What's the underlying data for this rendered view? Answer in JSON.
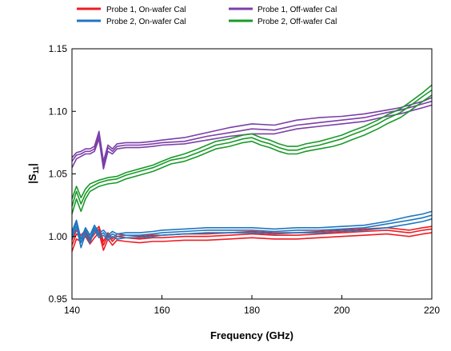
{
  "chart_data": {
    "type": "line",
    "title": "",
    "xlabel": "Frequency (GHz)",
    "ylabel": "|S",
    "ylabel_subscript": "11",
    "ylabel_close": "|",
    "xlim": [
      140,
      220
    ],
    "ylim": [
      0.95,
      1.15
    ],
    "x_ticks": [
      140,
      160,
      180,
      200,
      220
    ],
    "x_tick_labels": [
      "140",
      "160",
      "180",
      "200",
      "220"
    ],
    "y_ticks": [
      0.95,
      1.0,
      1.05,
      1.1,
      1.15
    ],
    "y_tick_labels": [
      "0.95",
      "1.00",
      "1.05",
      "1.10",
      "1.15"
    ],
    "grid": false,
    "legend_position": "top",
    "series": [
      {
        "name": "Probe 1, On-wafer Cal",
        "color": "#ee1c24",
        "curves": [
          {
            "x": [
              140,
              141,
              142,
              143,
              144,
              145,
              146,
              147,
              148,
              149,
              150,
              152,
              155,
              158,
              160,
              165,
              170,
              175,
              180,
              185,
              190,
              195,
              200,
              205,
              210,
              215,
              218,
              220
            ],
            "y": [
              0.988,
              0.998,
              0.996,
              1.0,
              0.994,
              0.999,
              1.003,
              0.989,
              0.998,
              0.993,
              0.997,
              0.996,
              0.995,
              0.996,
              0.996,
              0.997,
              0.997,
              0.998,
              0.999,
              0.998,
              0.998,
              0.999,
              1.0,
              1.001,
              1.002,
              1.0,
              1.002,
              1.003
            ]
          },
          {
            "x": [
              140,
              141,
              142,
              143,
              144,
              145,
              146,
              147,
              148,
              149,
              150,
              152,
              155,
              158,
              160,
              165,
              170,
              175,
              180,
              185,
              190,
              195,
              200,
              205,
              210,
              215,
              218,
              220
            ],
            "y": [
              0.993,
              1.002,
              0.999,
              1.003,
              0.997,
              1.002,
              1.006,
              0.993,
              1.001,
              0.996,
              1.0,
              0.999,
              0.998,
              0.999,
              0.999,
              1.0,
              1.0,
              1.001,
              1.002,
              1.001,
              1.001,
              1.002,
              1.003,
              1.004,
              1.005,
              1.003,
              1.005,
              1.006
            ]
          },
          {
            "x": [
              140,
              141,
              142,
              143,
              144,
              145,
              146,
              147,
              148,
              149,
              150,
              152,
              155,
              158,
              160,
              165,
              170,
              175,
              180,
              185,
              190,
              195,
              200,
              205,
              210,
              215,
              218,
              220
            ],
            "y": [
              0.997,
              1.005,
              1.001,
              1.005,
              0.999,
              1.004,
              1.008,
              0.996,
              1.003,
              0.998,
              1.002,
              1.001,
              1.0,
              1.001,
              1.001,
              1.002,
              1.002,
              1.003,
              1.004,
              1.003,
              1.003,
              1.004,
              1.005,
              1.006,
              1.007,
              1.005,
              1.007,
              1.008
            ]
          }
        ]
      },
      {
        "name": "Probe 2, On-wafer Cal",
        "color": "#1f77c0",
        "curves": [
          {
            "x": [
              140,
              141,
              142,
              143,
              144,
              145,
              146,
              147,
              148,
              149,
              150,
              152,
              155,
              158,
              160,
              165,
              170,
              175,
              180,
              185,
              190,
              195,
              200,
              205,
              210,
              215,
              218,
              220
            ],
            "y": [
              0.998,
              1.008,
              0.991,
              1.002,
              0.995,
              1.005,
              0.999,
              1.001,
              0.997,
              1.0,
              0.998,
              0.999,
              0.999,
              1.0,
              1.001,
              1.002,
              1.003,
              1.003,
              1.003,
              1.002,
              1.003,
              1.003,
              1.004,
              1.005,
              1.007,
              1.01,
              1.012,
              1.014
            ]
          },
          {
            "x": [
              140,
              141,
              142,
              143,
              144,
              145,
              146,
              147,
              148,
              149,
              150,
              152,
              155,
              158,
              160,
              165,
              170,
              175,
              180,
              185,
              190,
              195,
              200,
              205,
              210,
              215,
              218,
              220
            ],
            "y": [
              1.001,
              1.011,
              0.995,
              1.005,
              0.998,
              1.007,
              1.001,
              1.003,
              0.999,
              1.002,
              1.0,
              1.001,
              1.001,
              1.002,
              1.003,
              1.004,
              1.005,
              1.005,
              1.005,
              1.004,
              1.005,
              1.005,
              1.006,
              1.007,
              1.01,
              1.013,
              1.015,
              1.017
            ]
          },
          {
            "x": [
              140,
              141,
              142,
              143,
              144,
              145,
              146,
              147,
              148,
              149,
              150,
              152,
              155,
              158,
              160,
              165,
              170,
              175,
              180,
              185,
              190,
              195,
              200,
              205,
              210,
              215,
              218,
              220
            ],
            "y": [
              1.004,
              1.013,
              0.998,
              1.007,
              1.001,
              1.009,
              1.003,
              1.005,
              1.001,
              1.004,
              1.002,
              1.003,
              1.003,
              1.004,
              1.005,
              1.006,
              1.007,
              1.007,
              1.007,
              1.006,
              1.007,
              1.007,
              1.008,
              1.009,
              1.012,
              1.016,
              1.018,
              1.02
            ]
          }
        ]
      },
      {
        "name": "Probe 1, Off-wafer Cal",
        "color": "#7b3fa8",
        "curves": [
          {
            "x": [
              140,
              141,
              142,
              143,
              144,
              145,
              146,
              147,
              148,
              149,
              150,
              152,
              155,
              158,
              160,
              165,
              170,
              175,
              180,
              185,
              190,
              195,
              200,
              205,
              210,
              213,
              215,
              218,
              220
            ],
            "y": [
              1.055,
              1.062,
              1.064,
              1.066,
              1.066,
              1.068,
              1.078,
              1.054,
              1.068,
              1.066,
              1.07,
              1.071,
              1.071,
              1.072,
              1.073,
              1.074,
              1.077,
              1.08,
              1.082,
              1.082,
              1.086,
              1.088,
              1.09,
              1.092,
              1.096,
              1.098,
              1.1,
              1.103,
              1.105
            ]
          },
          {
            "x": [
              140,
              141,
              142,
              143,
              144,
              145,
              146,
              147,
              148,
              149,
              150,
              152,
              155,
              158,
              160,
              165,
              170,
              175,
              180,
              185,
              190,
              195,
              200,
              205,
              210,
              213,
              215,
              218,
              220
            ],
            "y": [
              1.06,
              1.065,
              1.066,
              1.068,
              1.068,
              1.07,
              1.081,
              1.057,
              1.071,
              1.068,
              1.072,
              1.073,
              1.073,
              1.074,
              1.075,
              1.076,
              1.08,
              1.083,
              1.086,
              1.085,
              1.089,
              1.091,
              1.093,
              1.095,
              1.099,
              1.101,
              1.103,
              1.106,
              1.108
            ]
          },
          {
            "x": [
              140,
              141,
              142,
              143,
              144,
              145,
              146,
              147,
              148,
              149,
              150,
              152,
              155,
              158,
              160,
              165,
              170,
              175,
              180,
              185,
              190,
              195,
              200,
              205,
              210,
              213,
              215,
              218,
              220
            ],
            "y": [
              1.063,
              1.067,
              1.068,
              1.07,
              1.07,
              1.072,
              1.084,
              1.06,
              1.073,
              1.07,
              1.074,
              1.075,
              1.075,
              1.076,
              1.077,
              1.079,
              1.083,
              1.087,
              1.09,
              1.089,
              1.093,
              1.095,
              1.096,
              1.098,
              1.101,
              1.103,
              1.105,
              1.108,
              1.111
            ]
          }
        ]
      },
      {
        "name": "Probe 2, Off-wafer Cal",
        "color": "#1a9a2a",
        "curves": [
          {
            "x": [
              140,
              141,
              142,
              143,
              144,
              146,
              148,
              150,
              152,
              155,
              158,
              160,
              162,
              165,
              168,
              170,
              172,
              175,
              178,
              180,
              182,
              184,
              186,
              188,
              190,
              192,
              195,
              198,
              200,
              202,
              205,
              208,
              210,
              213,
              215,
              218,
              220
            ],
            "y": [
              1.018,
              1.03,
              1.02,
              1.03,
              1.036,
              1.04,
              1.042,
              1.043,
              1.046,
              1.049,
              1.052,
              1.055,
              1.058,
              1.06,
              1.064,
              1.067,
              1.07,
              1.072,
              1.075,
              1.076,
              1.073,
              1.071,
              1.068,
              1.066,
              1.066,
              1.068,
              1.07,
              1.072,
              1.074,
              1.077,
              1.081,
              1.086,
              1.09,
              1.095,
              1.1,
              1.108,
              1.113
            ]
          },
          {
            "x": [
              140,
              141,
              142,
              143,
              144,
              146,
              148,
              150,
              152,
              155,
              158,
              160,
              162,
              165,
              168,
              170,
              172,
              175,
              178,
              180,
              182,
              184,
              186,
              188,
              190,
              192,
              195,
              198,
              200,
              202,
              205,
              208,
              210,
              213,
              215,
              218,
              220
            ],
            "y": [
              1.024,
              1.036,
              1.026,
              1.034,
              1.039,
              1.043,
              1.045,
              1.046,
              1.049,
              1.052,
              1.055,
              1.058,
              1.061,
              1.063,
              1.067,
              1.07,
              1.073,
              1.075,
              1.078,
              1.079,
              1.076,
              1.074,
              1.071,
              1.069,
              1.069,
              1.071,
              1.073,
              1.076,
              1.078,
              1.081,
              1.085,
              1.09,
              1.094,
              1.099,
              1.104,
              1.112,
              1.117
            ]
          },
          {
            "x": [
              140,
              141,
              142,
              143,
              144,
              146,
              148,
              150,
              152,
              155,
              158,
              160,
              162,
              165,
              168,
              170,
              172,
              175,
              178,
              180,
              182,
              184,
              186,
              188,
              190,
              192,
              195,
              198,
              200,
              202,
              205,
              208,
              210,
              213,
              215,
              218,
              220
            ],
            "y": [
              1.03,
              1.04,
              1.031,
              1.038,
              1.042,
              1.045,
              1.047,
              1.048,
              1.051,
              1.054,
              1.057,
              1.06,
              1.063,
              1.066,
              1.07,
              1.073,
              1.076,
              1.078,
              1.081,
              1.082,
              1.079,
              1.077,
              1.074,
              1.072,
              1.072,
              1.074,
              1.076,
              1.079,
              1.081,
              1.084,
              1.088,
              1.093,
              1.097,
              1.102,
              1.107,
              1.115,
              1.121
            ]
          }
        ]
      }
    ]
  }
}
